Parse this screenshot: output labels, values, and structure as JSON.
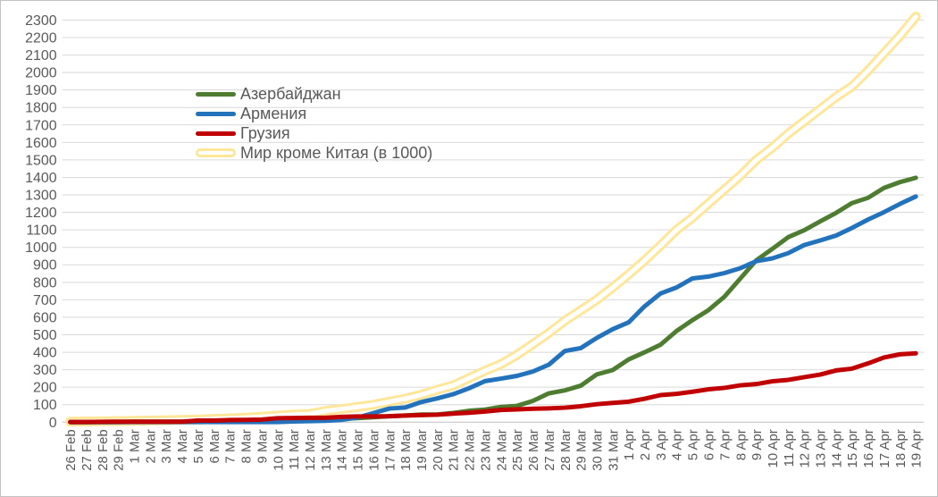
{
  "chart_data": {
    "type": "line",
    "title": "",
    "xlabel": "",
    "ylabel": "",
    "ylim": [
      0,
      2300
    ],
    "ytick_step": 100,
    "grid": "horizontal",
    "legend_position": "inside-upper-left",
    "x_categories": [
      "26 Feb",
      "27 Feb",
      "28 Feb",
      "29 Feb",
      "1 Mar",
      "2 Mar",
      "3 Mar",
      "4 Mar",
      "5 Mar",
      "6 Mar",
      "7 Mar",
      "8 Mar",
      "9 Mar",
      "10 Mar",
      "11 Mar",
      "12 Mar",
      "13 Mar",
      "14 Mar",
      "15 Mar",
      "16 Mar",
      "17 Mar",
      "18 Mar",
      "19 Mar",
      "20 Mar",
      "21 Mar",
      "22 Mar",
      "23 Mar",
      "24 Mar",
      "25 Mar",
      "26 Mar",
      "27 Mar",
      "28 Mar",
      "29 Mar",
      "30 Mar",
      "31 Mar",
      "1 Apr",
      "2 Apr",
      "3 Apr",
      "4 Apr",
      "5 Apr",
      "6 Apr",
      "7 Apr",
      "8 Apr",
      "9 Apr",
      "10 Apr",
      "11 Apr",
      "12 Apr",
      "13 Apr",
      "14 Apr",
      "15 Apr",
      "16 Apr",
      "17 Apr",
      "18 Apr",
      "19 Apr"
    ],
    "series": [
      {
        "name": "Мир кроме Китая (в 1000)",
        "color": "#FFE699",
        "style": "tube",
        "values": [
          3,
          4,
          5,
          6,
          7,
          9,
          11,
          13,
          15,
          19,
          22,
          26,
          31,
          37,
          44,
          47,
          64,
          75,
          87,
          100,
          117,
          134,
          157,
          185,
          210,
          252,
          294,
          332,
          385,
          447,
          510,
          580,
          640,
          700,
          770,
          845,
          925,
          1010,
          1100,
          1170,
          1250,
          1330,
          1410,
          1500,
          1570,
          1650,
          1720,
          1790,
          1860,
          1920,
          2010,
          2110,
          2210,
          2320
        ]
      },
      {
        "name": "Азербайджан",
        "color": "#4E7D31",
        "style": "solid",
        "values": [
          0,
          0,
          1,
          1,
          3,
          3,
          3,
          3,
          6,
          6,
          9,
          9,
          9,
          11,
          11,
          15,
          15,
          19,
          23,
          28,
          34,
          38,
          44,
          44,
          53,
          65,
          72,
          87,
          93,
          122,
          165,
          182,
          209,
          273,
          298,
          359,
          400,
          443,
          521,
          584,
          641,
          717,
          822,
          926,
          991,
          1058,
          1098,
          1148,
          1197,
          1253,
          1283,
          1340,
          1373,
          1398
        ]
      },
      {
        "name": "Армения",
        "color": "#2372BC",
        "style": "solid",
        "values": [
          0,
          0,
          0,
          0,
          1,
          1,
          1,
          1,
          1,
          1,
          1,
          1,
          1,
          1,
          4,
          6,
          8,
          13,
          26,
          52,
          78,
          84,
          115,
          136,
          160,
          194,
          235,
          249,
          265,
          290,
          329,
          407,
          424,
          482,
          532,
          571,
          663,
          736,
          770,
          822,
          833,
          853,
          881,
          921,
          937,
          967,
          1013,
          1039,
          1067,
          1111,
          1159,
          1201,
          1248,
          1291
        ]
      },
      {
        "name": "Грузия",
        "color": "#C00000",
        "style": "solid",
        "values": [
          1,
          1,
          2,
          3,
          3,
          3,
          3,
          3,
          9,
          9,
          12,
          13,
          15,
          23,
          24,
          25,
          25,
          30,
          33,
          33,
          34,
          38,
          40,
          43,
          49,
          54,
          61,
          70,
          73,
          77,
          79,
          83,
          91,
          103,
          110,
          117,
          134,
          155,
          162,
          174,
          188,
          196,
          211,
          218,
          234,
          242,
          257,
          272,
          296,
          306,
          336,
          370,
          388,
          394
        ]
      }
    ],
    "legend_order": [
      1,
      2,
      3,
      0
    ],
    "colors": {
      "grid": "#D9D9D9",
      "axis": "#BFBFBF",
      "tick_text": "#595959",
      "background": "#FFFFFF",
      "tube_core": "#FFFFFF"
    }
  }
}
